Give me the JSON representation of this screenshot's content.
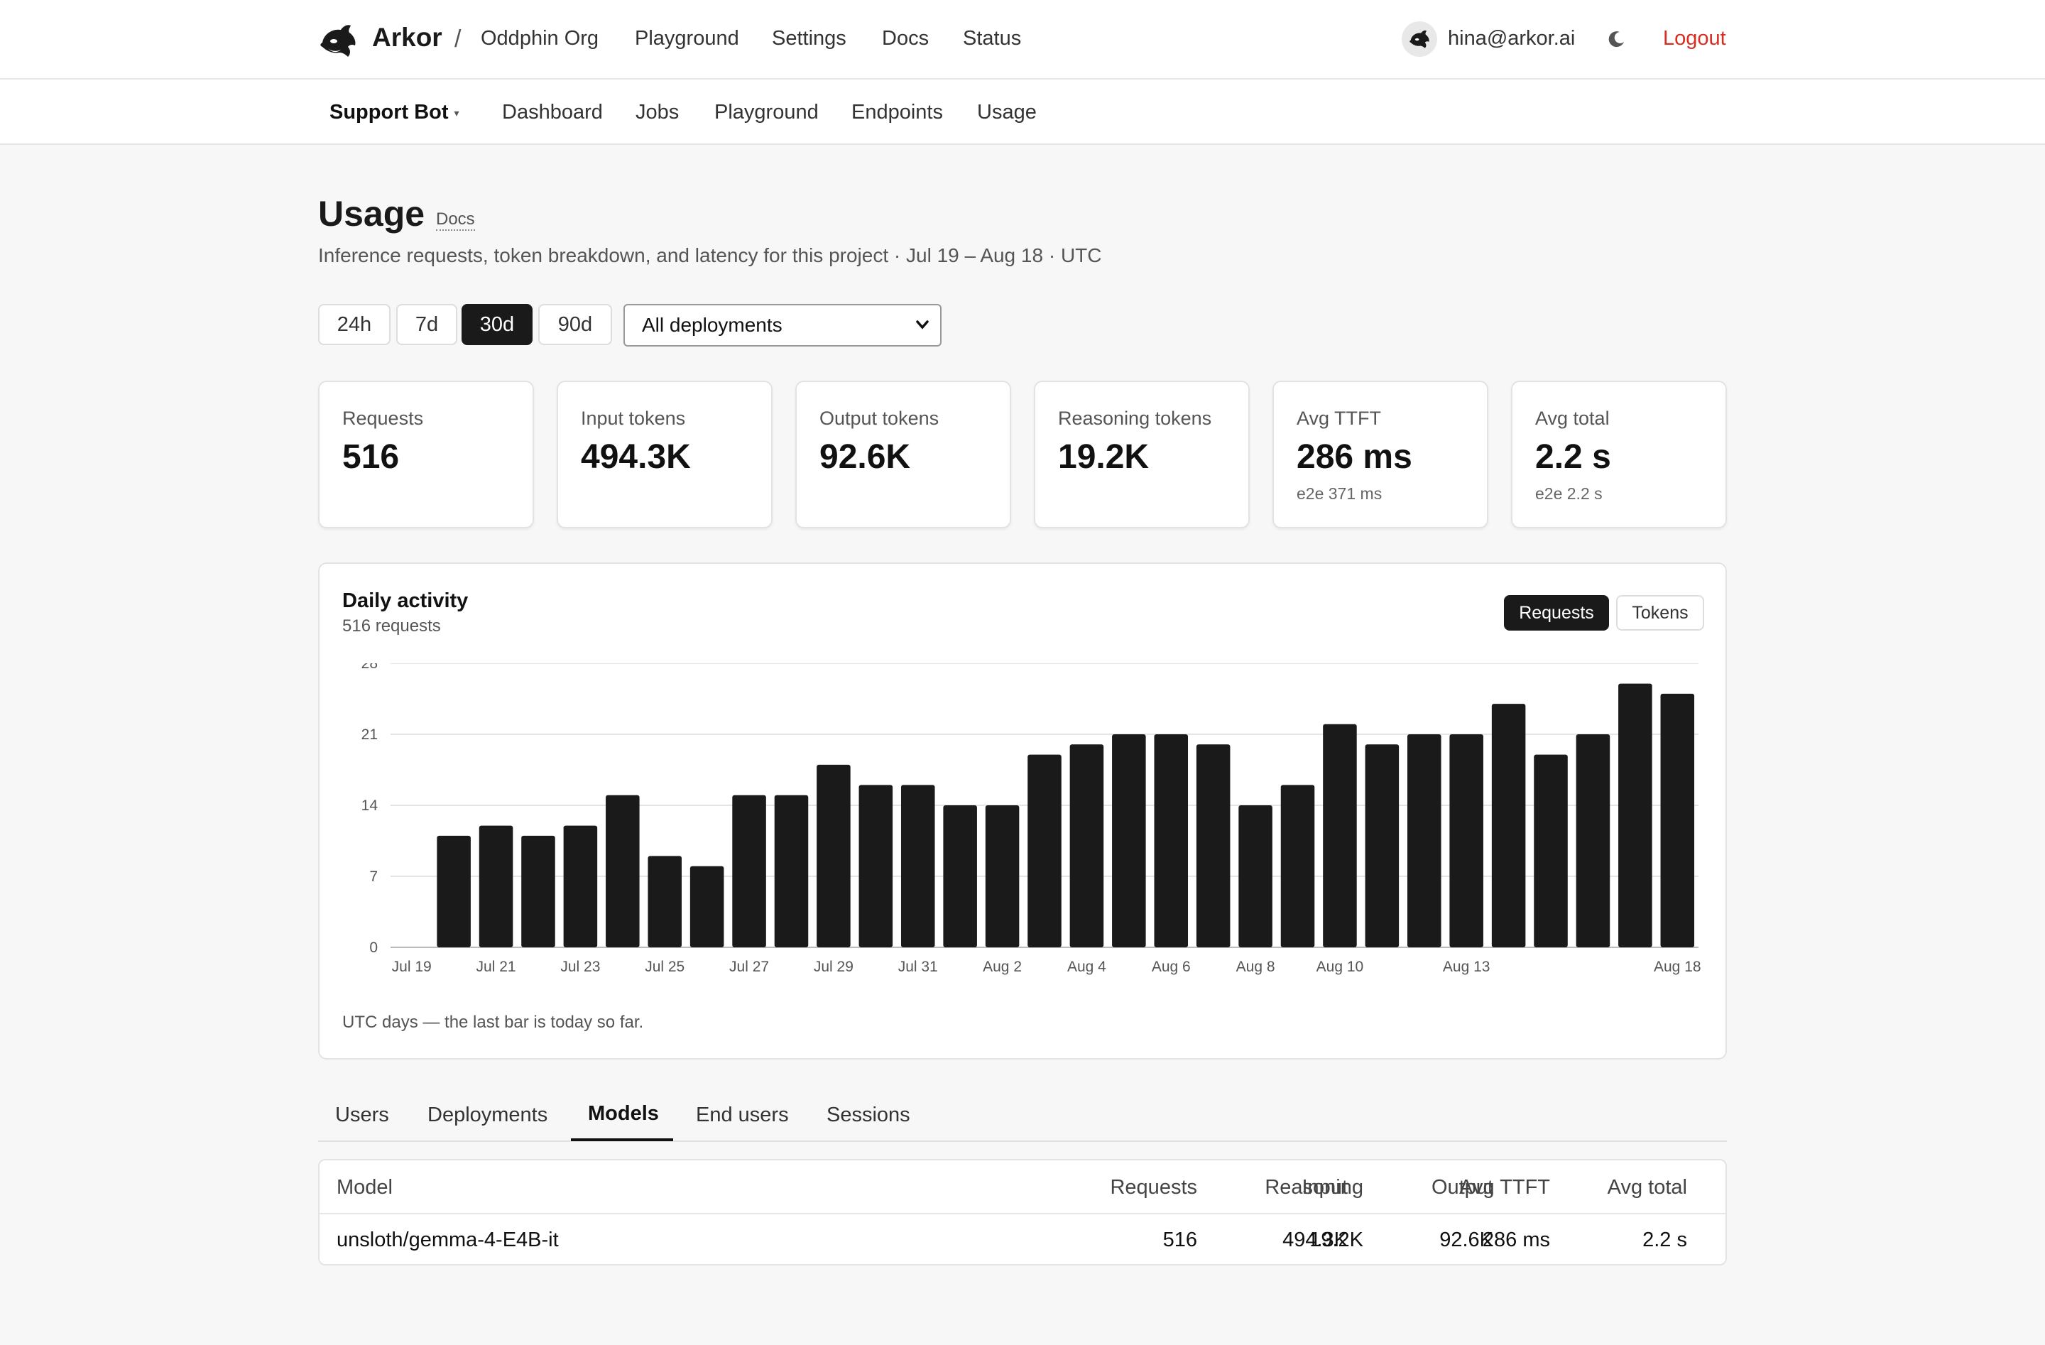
{
  "header": {
    "brand": "Arkor",
    "separator": "/",
    "org": "Oddphin Org",
    "nav": [
      "Playground",
      "Settings",
      "Docs",
      "Status"
    ],
    "user_email": "hina@arkor.ai",
    "theme_icon": "moon-icon",
    "logout_label": "Logout",
    "logout_color": "#d92d20"
  },
  "subnav": {
    "project": "Support Bot",
    "items": [
      "Dashboard",
      "Jobs",
      "Playground",
      "Endpoints",
      "Usage"
    ]
  },
  "page": {
    "title": "Usage",
    "docs_link": "Docs",
    "description": "Inference requests, token breakdown, and latency for this project · Jul 19 – Aug 18 · UTC"
  },
  "filters": {
    "ranges": [
      "24h",
      "7d",
      "30d",
      "90d"
    ],
    "active_range": "30d",
    "deployment_select": "All deployments"
  },
  "stats": [
    {
      "label": "Requests",
      "value": "516",
      "sub": ""
    },
    {
      "label": "Input tokens",
      "value": "494.3K",
      "sub": ""
    },
    {
      "label": "Output tokens",
      "value": "92.6K",
      "sub": ""
    },
    {
      "label": "Reasoning tokens",
      "value": "19.2K",
      "sub": ""
    },
    {
      "label": "Avg TTFT",
      "value": "286 ms",
      "sub": "e2e 371 ms"
    },
    {
      "label": "Avg total",
      "value": "2.2 s",
      "sub": "e2e 2.2 s"
    }
  ],
  "chart_card": {
    "title": "Daily activity",
    "subtitle": "516 requests",
    "toggle": [
      "Requests",
      "Tokens"
    ],
    "active_toggle": "Requests",
    "note": "UTC days — the last bar is today so far."
  },
  "chart_data": {
    "type": "bar",
    "title": "Daily activity",
    "xlabel": "",
    "ylabel": "",
    "ylim": [
      0,
      28
    ],
    "yticks": [
      0,
      7,
      14,
      21,
      28
    ],
    "grid": true,
    "bar_color": "#1a1a1a",
    "categories": [
      "Jul 19",
      "Jul 20",
      "Jul 21",
      "Jul 22",
      "Jul 23",
      "Jul 24",
      "Jul 25",
      "Jul 26",
      "Jul 27",
      "Jul 28",
      "Jul 29",
      "Jul 30",
      "Jul 31",
      "Aug 1",
      "Aug 2",
      "Aug 3",
      "Aug 4",
      "Aug 5",
      "Aug 6",
      "Aug 7",
      "Aug 8",
      "Aug 9",
      "Aug 10",
      "Aug 11",
      "Aug 12",
      "Aug 13",
      "Aug 14",
      "Aug 15",
      "Aug 16",
      "Aug 17",
      "Aug 18"
    ],
    "tick_labels": [
      "Jul 19",
      "Jul 21",
      "Jul 23",
      "Jul 25",
      "Jul 27",
      "Jul 29",
      "Jul 31",
      "Aug 2",
      "Aug 4",
      "Aug 6",
      "Aug 8",
      "Aug 10",
      "Aug 13",
      "Aug 18"
    ],
    "values": [
      0,
      11,
      12,
      11,
      12,
      15,
      9,
      8,
      15,
      15,
      18,
      16,
      16,
      14,
      14,
      19,
      20,
      21,
      21,
      20,
      14,
      16,
      22,
      20,
      21,
      21,
      24,
      19,
      21,
      26,
      25
    ]
  },
  "tabs": {
    "items": [
      "Users",
      "Deployments",
      "Models",
      "End users",
      "Sessions"
    ],
    "active": "Models"
  },
  "table": {
    "columns": [
      "Model",
      "Requests",
      "Input",
      "Output",
      "Reasoning",
      "Avg TTFT",
      "Avg total"
    ],
    "rows": [
      [
        "unsloth/gemma-4-E4B-it",
        "516",
        "494.3K",
        "92.6K",
        "19.2K",
        "286 ms",
        "2.2 s"
      ]
    ]
  }
}
